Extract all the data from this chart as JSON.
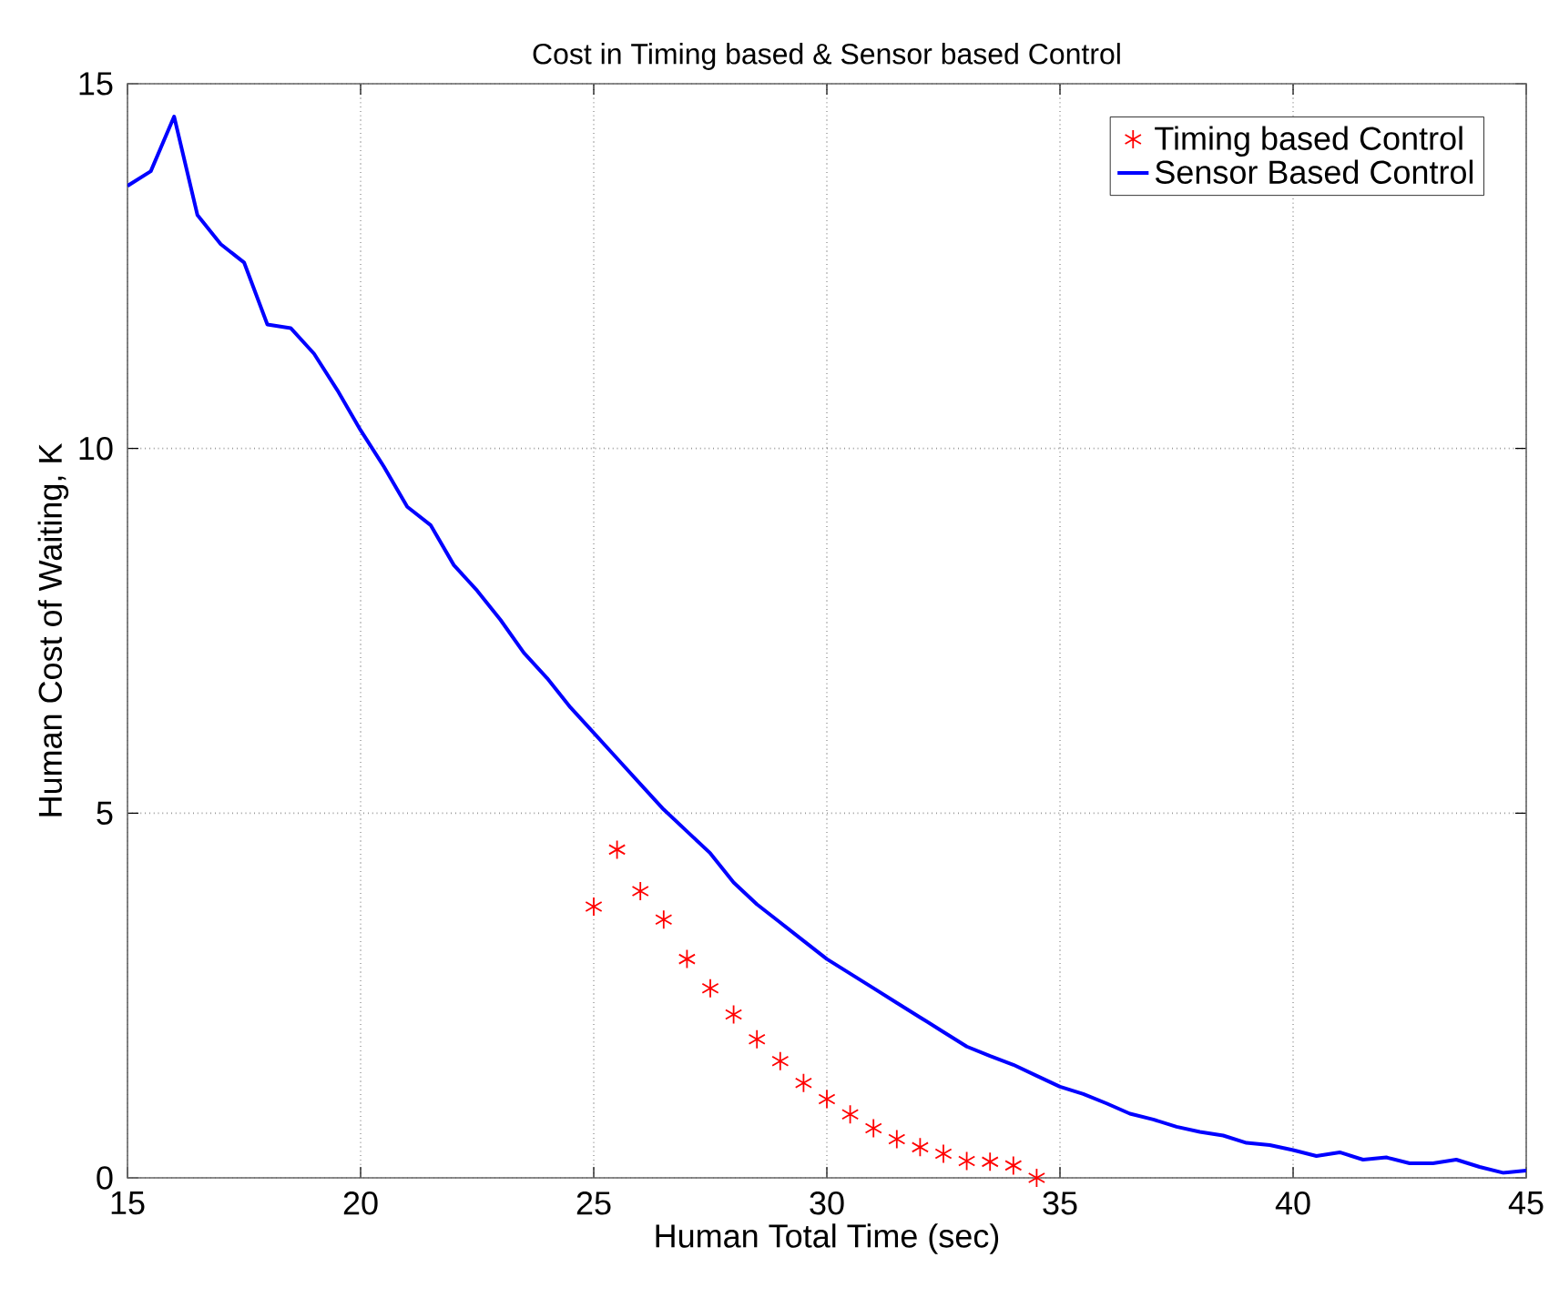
{
  "chart_data": {
    "type": "line",
    "title": "Cost in Timing based & Sensor based Control",
    "xlabel": "Human Total Time (sec)",
    "ylabel": "Human Cost of Waiting, K",
    "xlim": [
      15,
      45
    ],
    "ylim": [
      0,
      15
    ],
    "xticks": [
      15,
      20,
      25,
      30,
      35,
      40,
      45
    ],
    "yticks": [
      0,
      5,
      10,
      15
    ],
    "grid": true,
    "legend": "top right",
    "series": [
      {
        "name": "Timing based Control",
        "type": "scatter",
        "color": "#ff0000",
        "x": [
          25,
          25.5,
          26,
          26.5,
          27,
          27.5,
          28,
          28.5,
          29,
          29.5,
          30,
          30.5,
          31,
          31.5,
          32,
          32.5,
          33,
          33.5,
          34,
          34.5
        ],
        "values": [
          3.72,
          4.5,
          3.93,
          3.54,
          3.0,
          2.6,
          2.24,
          1.9,
          1.6,
          1.3,
          1.08,
          0.87,
          0.68,
          0.53,
          0.42,
          0.33,
          0.23,
          0.22,
          0.17,
          0.0
        ]
      },
      {
        "name": "Sensor Based Control",
        "line_style": "solid",
        "color": "#0000ff",
        "x": [
          15,
          15.5,
          16,
          16.5,
          17,
          17.5,
          18,
          18.5,
          19,
          19.5,
          20,
          20.5,
          21,
          21.5,
          22,
          22.5,
          23,
          23.5,
          24,
          24.5,
          25,
          25.5,
          26,
          26.5,
          27,
          27.5,
          28,
          28.5,
          29,
          29.5,
          30,
          30.5,
          31,
          31.5,
          32,
          32.5,
          33,
          33.5,
          34,
          34.5,
          35,
          35.5,
          36,
          36.5,
          37,
          37.5,
          38,
          38.5,
          39,
          39.5,
          40,
          40.5,
          41,
          41.5,
          42,
          42.5,
          43,
          43.5,
          44,
          44.5,
          45
        ],
        "values": [
          13.6,
          13.8,
          14.55,
          13.2,
          12.8,
          12.55,
          11.7,
          11.65,
          11.3,
          10.8,
          10.25,
          9.75,
          9.2,
          8.95,
          8.4,
          8.05,
          7.65,
          7.2,
          6.85,
          6.45,
          6.1,
          5.75,
          5.4,
          5.05,
          4.75,
          4.45,
          4.05,
          3.75,
          3.5,
          3.25,
          3.0,
          2.8,
          2.6,
          2.4,
          2.2,
          2.0,
          1.8,
          1.67,
          1.55,
          1.4,
          1.25,
          1.15,
          1.02,
          0.88,
          0.8,
          0.7,
          0.63,
          0.58,
          0.48,
          0.45,
          0.38,
          0.3,
          0.35,
          0.25,
          0.28,
          0.2,
          0.2,
          0.25,
          0.15,
          0.07,
          0.1
        ]
      }
    ]
  }
}
